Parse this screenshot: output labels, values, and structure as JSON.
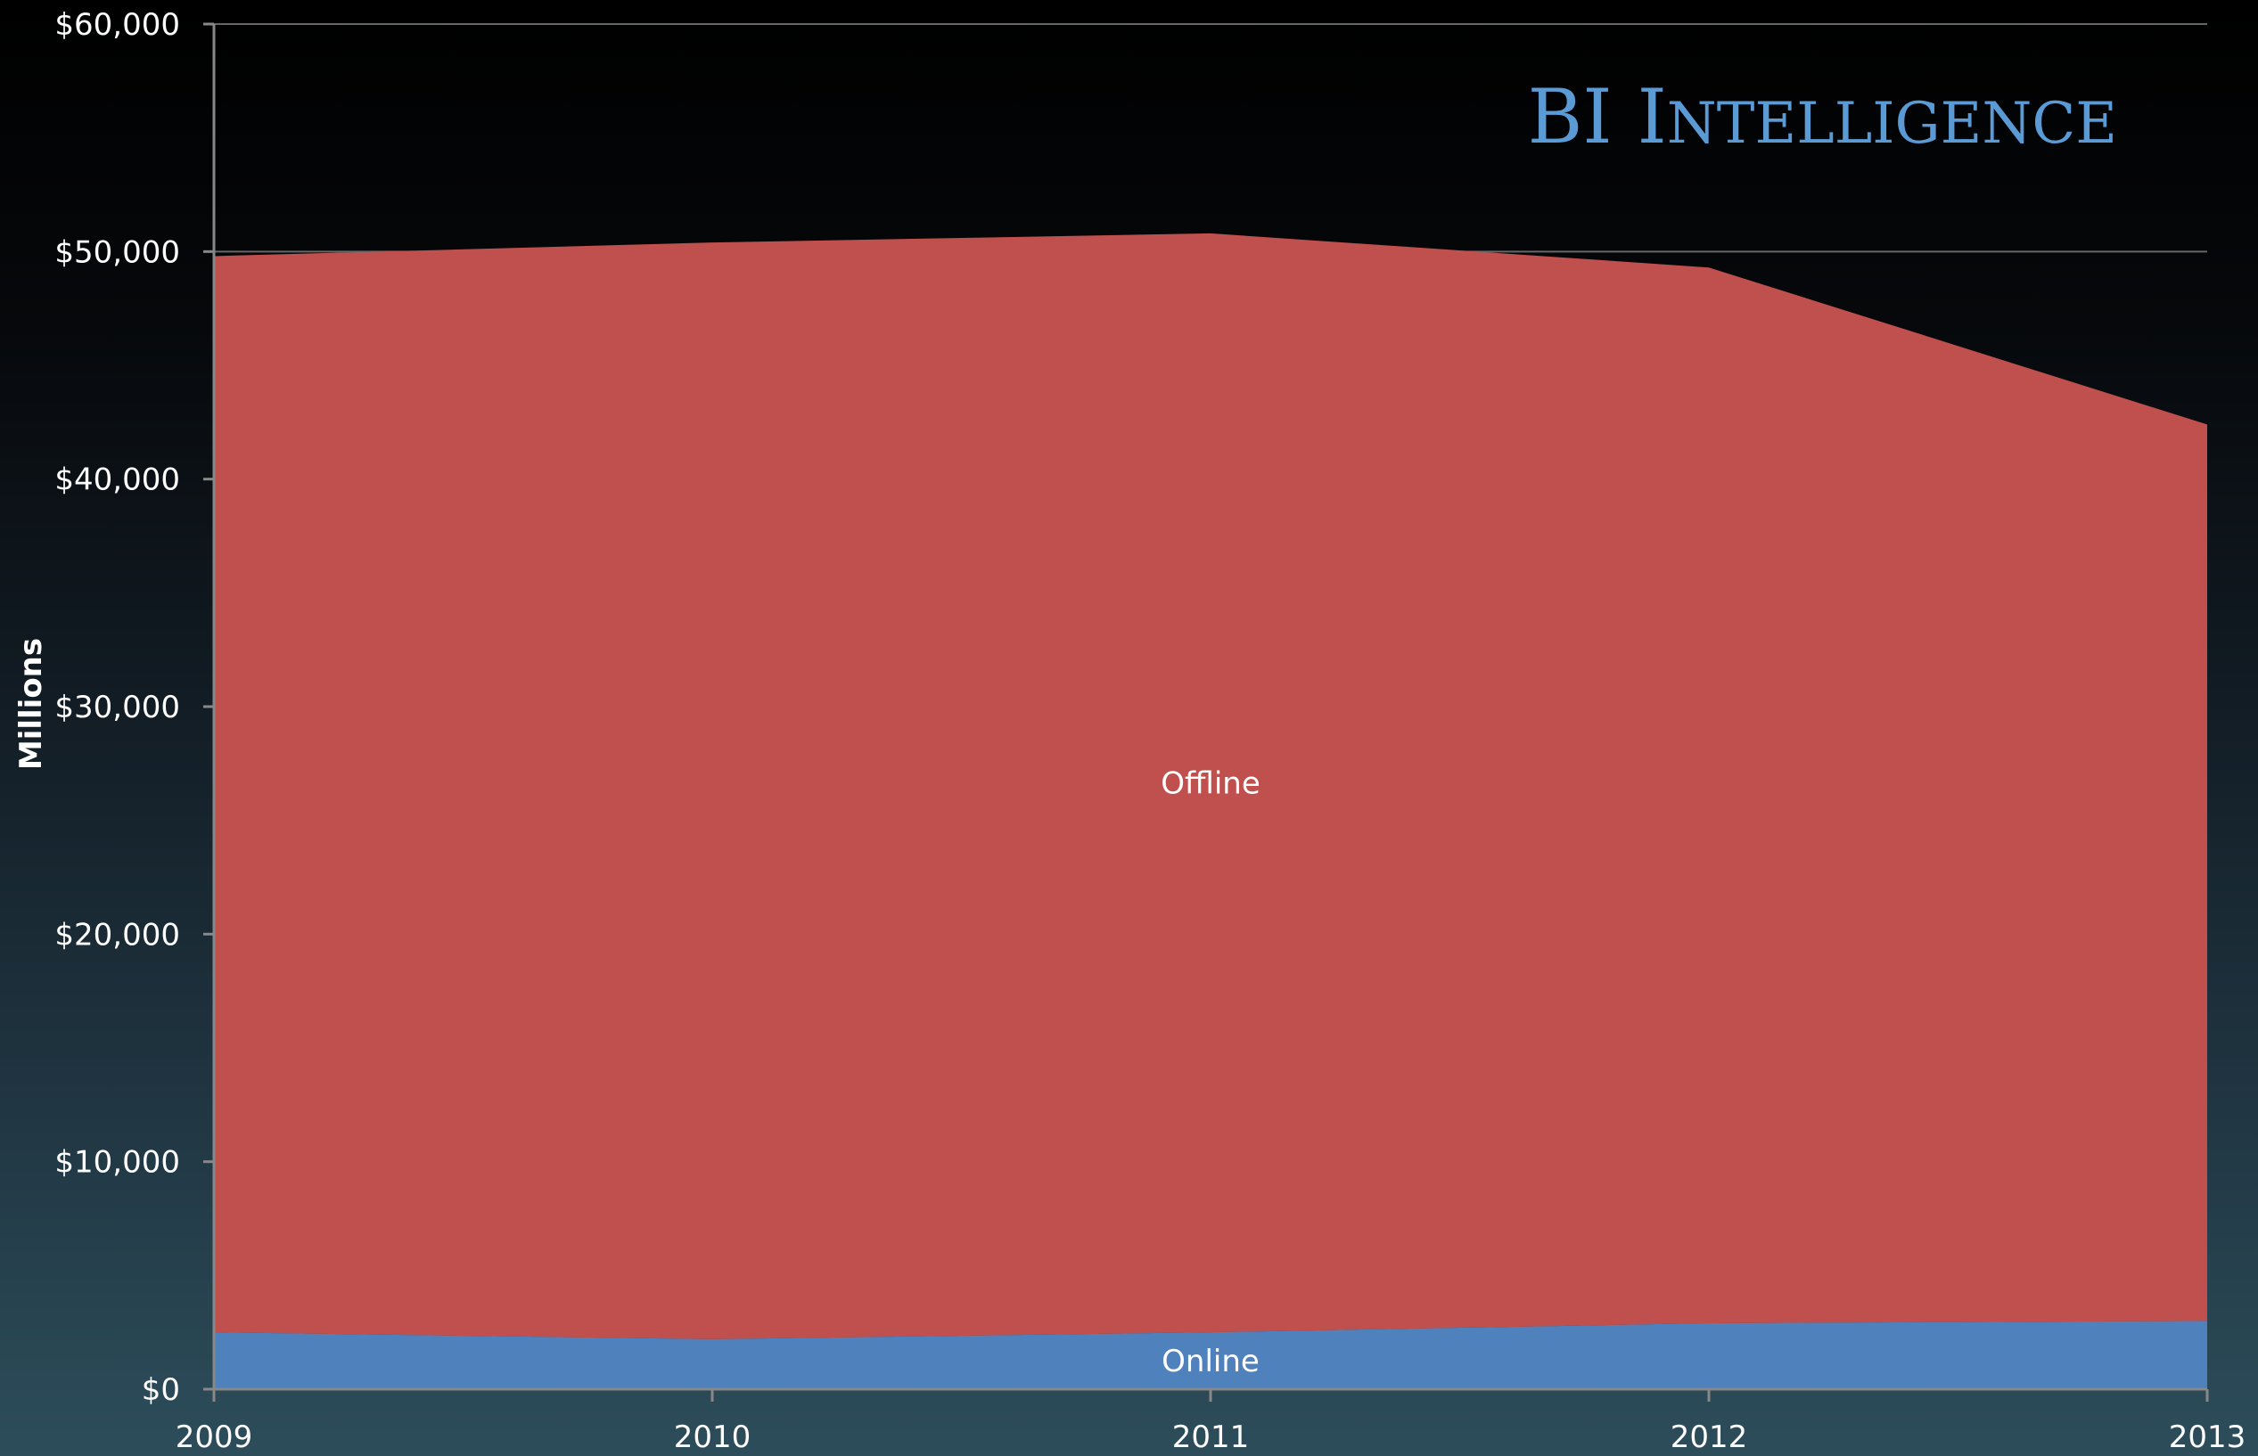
{
  "brand": {
    "text_big_1": "BI",
    "text_big_2": "I",
    "text_small": "NTELLIGENCE"
  },
  "chart_data": {
    "type": "area",
    "stacked": true,
    "x": [
      "2009",
      "2010",
      "2011",
      "2012",
      "2013"
    ],
    "series": [
      {
        "name": "Online",
        "values": [
          2500,
          2200,
          2500,
          2900,
          3000
        ],
        "color": "#4f81bd"
      },
      {
        "name": "Offline",
        "values": [
          47300,
          48200,
          48300,
          46400,
          39400
        ],
        "color": "#c0504d"
      }
    ],
    "ylabel": "Millions",
    "ylim": [
      0,
      60000
    ],
    "yticks": [
      {
        "value": 0,
        "label": "$0"
      },
      {
        "value": 10000,
        "label": "$10,000"
      },
      {
        "value": 20000,
        "label": "$20,000"
      },
      {
        "value": 30000,
        "label": "$30,000"
      },
      {
        "value": 40000,
        "label": "$40,000"
      },
      {
        "value": 50000,
        "label": "$50,000"
      },
      {
        "value": 60000,
        "label": "$60,000"
      }
    ],
    "grid": true,
    "legend": "none",
    "colors": {
      "grid": "#666666",
      "axis": "#888888"
    }
  }
}
